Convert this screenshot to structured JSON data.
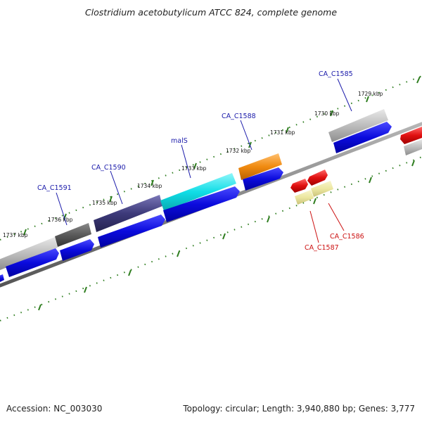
{
  "title": "Clostridium acetobutylicum ATCC 824, complete genome",
  "footer": {
    "accession": "Accession: NC_003030",
    "summary": "Topology: circular; Length: 3,940,880 bp; Genes: 3,777"
  },
  "colors": {
    "backbone": "#777777",
    "tick_green": "#2e7d1f",
    "label_forward": "#1a1aaa",
    "label_reverse": "#cc1111",
    "cds_blue": "#0b0bdd",
    "gene_gray": "#b0b0b0",
    "gene_darkgray": "#555555",
    "gene_purple": "#3d3a7a",
    "gene_cyan": "#10dde6",
    "gene_orange": "#f08a10",
    "gene_red": "#e01010",
    "gene_khaki": "#ece7a0"
  },
  "scale_labels": {
    "k1729": "1729 kbp",
    "k1730": "1730 kbp",
    "k1731": "1731 kbp",
    "k1732": "1732 kbp",
    "k1733": "1733 kbp",
    "k1734": "1734 kbp",
    "k1735": "1735 kbp",
    "k1736": "1736 kbp",
    "k1737": "1737 kbp"
  },
  "gene_labels": {
    "ca_c1585": "CA_C1585",
    "ca_c1588": "CA_C1588",
    "mals": "malS",
    "ca_c1590": "CA_C1590",
    "ca_c1591": "CA_C1591",
    "ca_c1586": "CA_C1586",
    "ca_c1587": "CA_C1587"
  }
}
